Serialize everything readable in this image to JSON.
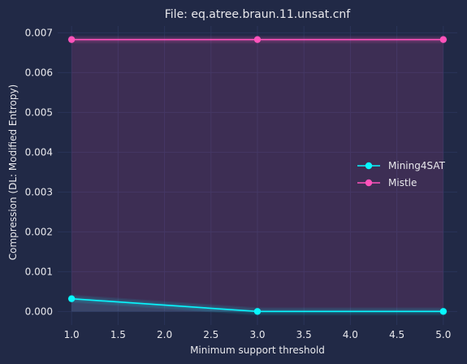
{
  "chart_data": {
    "type": "line",
    "title": "File: eq.atree.braun.11.unsat.cnf",
    "xlabel": "Minimum support threshold",
    "ylabel": "Compression (DL: Modified Entropy)",
    "x": [
      1.0,
      3.0,
      5.0
    ],
    "xlim": [
      0.85,
      5.15
    ],
    "ylim": [
      -0.00034,
      0.00717
    ],
    "x_ticks": [
      "1.0",
      "1.5",
      "2.0",
      "2.5",
      "3.0",
      "3.5",
      "4.0",
      "4.5",
      "5.0"
    ],
    "y_ticks": [
      "0.000",
      "0.001",
      "0.002",
      "0.003",
      "0.004",
      "0.005",
      "0.006",
      "0.007"
    ],
    "grid": true,
    "legend_position": "right",
    "series": [
      {
        "name": "Mining4SAT",
        "values": [
          0.00032,
          0.0,
          0.0
        ],
        "color": "#08F7FE"
      },
      {
        "name": "Mistle",
        "values": [
          0.00683,
          0.00683,
          0.00683
        ],
        "color": "#FE53BB"
      }
    ],
    "colors": {
      "background": "#212946",
      "grid": "#2A3459",
      "text": "#E8E8EC"
    }
  }
}
